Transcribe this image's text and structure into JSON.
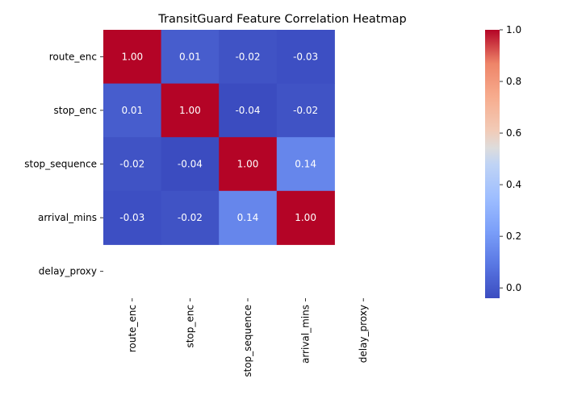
{
  "chart_data": {
    "type": "heatmap",
    "title": "TransitGuard Feature Correlation Heatmap",
    "row_labels": [
      "route_enc",
      "stop_enc",
      "stop_sequence",
      "arrival_mins",
      "delay_proxy"
    ],
    "col_labels": [
      "route_enc",
      "stop_enc",
      "stop_sequence",
      "arrival_mins",
      "delay_proxy"
    ],
    "values": [
      [
        1.0,
        0.01,
        -0.02,
        -0.03,
        null
      ],
      [
        0.01,
        1.0,
        -0.04,
        -0.02,
        null
      ],
      [
        -0.02,
        -0.04,
        1.0,
        0.14,
        null
      ],
      [
        -0.03,
        -0.02,
        0.14,
        1.0,
        null
      ],
      [
        null,
        null,
        null,
        null,
        null
      ]
    ],
    "cell_labels": [
      [
        "1.00",
        "0.01",
        "-0.02",
        "-0.03",
        ""
      ],
      [
        "0.01",
        "1.00",
        "-0.04",
        "-0.02",
        ""
      ],
      [
        "-0.02",
        "-0.04",
        "1.00",
        "0.14",
        ""
      ],
      [
        "-0.03",
        "-0.02",
        "0.14",
        "1.00",
        ""
      ],
      [
        "",
        "",
        "",
        "",
        ""
      ]
    ],
    "colormap": "coolwarm",
    "vmin": -0.04,
    "vmax": 1.0,
    "colorbar": {
      "ticks": [
        0.0,
        0.2,
        0.4,
        0.6,
        0.8,
        1.0
      ],
      "tick_labels": [
        "0.0",
        "0.2",
        "0.4",
        "0.6",
        "0.8",
        "1.0"
      ]
    },
    "xlabel": "",
    "ylabel": ""
  }
}
